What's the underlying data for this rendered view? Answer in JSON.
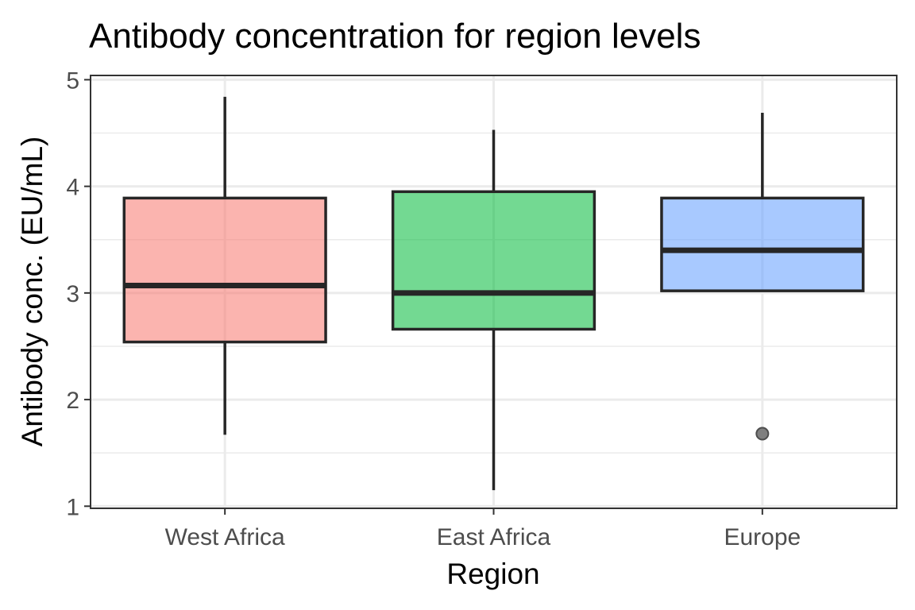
{
  "chart_data": {
    "type": "boxplot",
    "title": "Antibody concentration for region levels",
    "xlabel": "Region",
    "ylabel": "Antibody conc. (EU/mL)",
    "ylim": [
      0.98,
      5.04
    ],
    "yticks": [
      1,
      2,
      3,
      4,
      5
    ],
    "grid": true,
    "theme": "bw",
    "categories": [
      "West Africa",
      "East Africa",
      "Europe"
    ],
    "boxes": [
      {
        "category": "West Africa",
        "whisker_low": 1.67,
        "q1": 2.54,
        "median": 3.07,
        "q3": 3.89,
        "whisker_high": 4.84,
        "outliers": [],
        "fill": "#F8766D"
      },
      {
        "category": "East Africa",
        "whisker_low": 1.15,
        "q1": 2.66,
        "median": 3.0,
        "q3": 3.95,
        "whisker_high": 4.53,
        "outliers": [],
        "fill": "#00BA38"
      },
      {
        "category": "Europe",
        "whisker_low": 3.02,
        "q1": 3.02,
        "median": 3.4,
        "q3": 3.89,
        "whisker_high": 4.69,
        "outliers": [
          1.68
        ],
        "fill": "#619CFF"
      }
    ]
  }
}
